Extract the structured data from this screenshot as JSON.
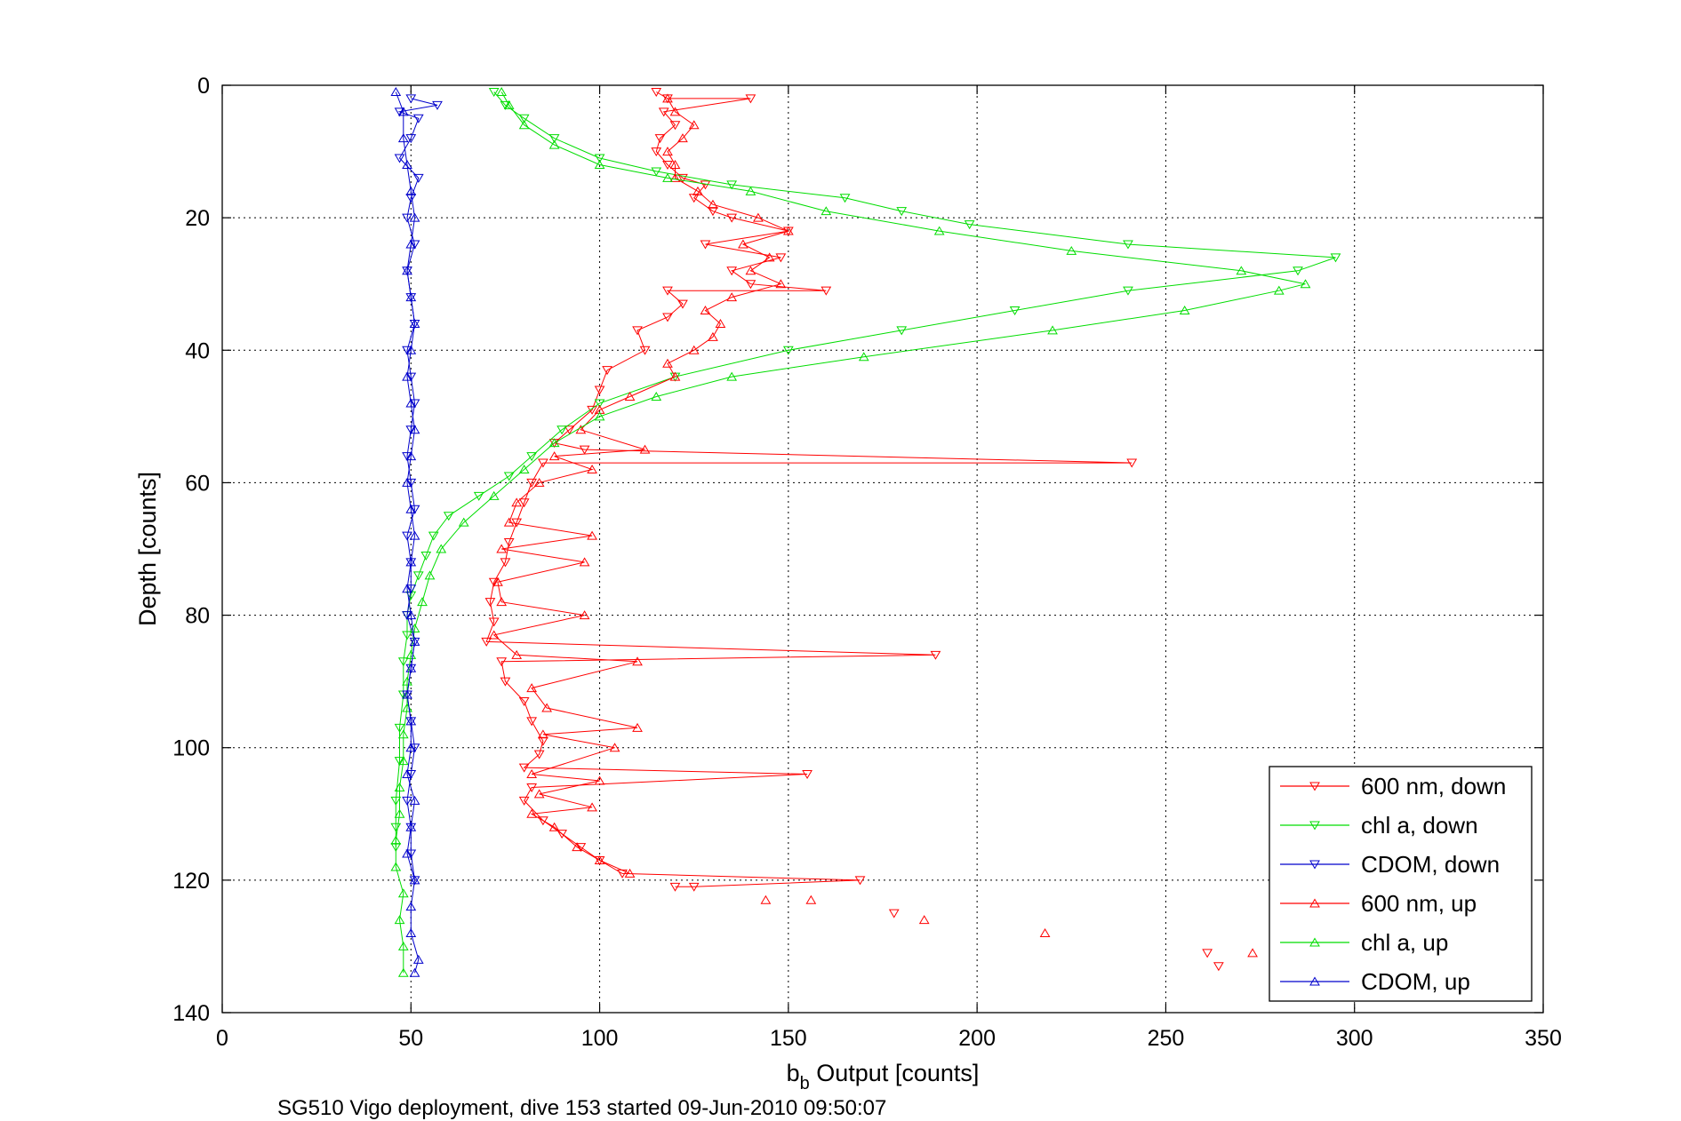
{
  "chart_data": {
    "type": "line",
    "footer": "SG510 Vigo deployment, dive 153 started 09-Jun-2010 09:50:07",
    "xlabel_main": "b",
    "xlabel_sub": "b",
    "xlabel_rest": " Output [counts]",
    "ylabel": "Depth [counts]",
    "xlim": [
      0,
      350
    ],
    "ylim": [
      0,
      140
    ],
    "y_reversed": true,
    "grid": true,
    "legend_position": "bottom-right",
    "xticks": [
      "0",
      "50",
      "100",
      "150",
      "200",
      "250",
      "300",
      "350"
    ],
    "yticks": [
      "0",
      "20",
      "40",
      "60",
      "80",
      "100",
      "120",
      "140"
    ],
    "series": [
      {
        "name": "600 nm, down",
        "color": "#ff0000",
        "marker": "triangle-down",
        "points": [
          [
            115,
            1
          ],
          [
            118,
            2
          ],
          [
            140,
            2
          ],
          [
            117,
            4
          ],
          [
            120,
            6
          ],
          [
            116,
            8
          ],
          [
            115,
            10
          ],
          [
            118,
            12
          ],
          [
            122,
            14
          ],
          [
            128,
            15
          ],
          [
            125,
            17
          ],
          [
            130,
            19
          ],
          [
            135,
            20
          ],
          [
            150,
            22
          ],
          [
            128,
            24
          ],
          [
            148,
            26
          ],
          [
            135,
            28
          ],
          [
            140,
            30
          ],
          [
            160,
            31
          ],
          [
            118,
            31
          ],
          [
            122,
            33
          ],
          [
            118,
            35
          ],
          [
            110,
            37
          ],
          [
            112,
            40
          ],
          [
            102,
            43
          ],
          [
            100,
            46
          ],
          [
            98,
            49
          ],
          [
            92,
            52
          ],
          [
            88,
            54
          ],
          [
            96,
            55
          ],
          [
            241,
            57
          ],
          [
            85,
            57
          ],
          [
            82,
            60
          ],
          [
            80,
            63
          ],
          [
            78,
            66
          ],
          [
            76,
            69
          ],
          [
            75,
            72
          ],
          [
            72,
            75
          ],
          [
            71,
            78
          ],
          [
            72,
            81
          ],
          [
            70,
            84
          ],
          [
            189,
            86
          ],
          [
            74,
            87
          ],
          [
            75,
            90
          ],
          [
            80,
            93
          ],
          [
            82,
            96
          ],
          [
            85,
            99
          ],
          [
            84,
            101
          ],
          [
            80,
            103
          ],
          [
            155,
            104
          ],
          [
            82,
            106
          ],
          [
            80,
            108
          ],
          [
            85,
            111
          ],
          [
            90,
            113
          ],
          [
            95,
            115
          ],
          [
            100,
            117
          ],
          [
            106,
            119
          ],
          [
            169,
            120
          ],
          [
            125,
            121
          ],
          [
            120,
            121
          ]
        ]
      },
      {
        "name": "chl a, down",
        "color": "#00dd00",
        "marker": "triangle-down",
        "points": [
          [
            72,
            1
          ],
          [
            75,
            3
          ],
          [
            80,
            5
          ],
          [
            88,
            8
          ],
          [
            100,
            11
          ],
          [
            115,
            13
          ],
          [
            135,
            15
          ],
          [
            165,
            17
          ],
          [
            180,
            19
          ],
          [
            198,
            21
          ],
          [
            240,
            24
          ],
          [
            295,
            26
          ],
          [
            285,
            28
          ],
          [
            240,
            31
          ],
          [
            210,
            34
          ],
          [
            180,
            37
          ],
          [
            150,
            40
          ],
          [
            120,
            44
          ],
          [
            100,
            48
          ],
          [
            90,
            52
          ],
          [
            82,
            56
          ],
          [
            76,
            59
          ],
          [
            68,
            62
          ],
          [
            60,
            65
          ],
          [
            56,
            68
          ],
          [
            54,
            71
          ],
          [
            52,
            74
          ],
          [
            50,
            77
          ],
          [
            49,
            80
          ],
          [
            49,
            83
          ],
          [
            48,
            87
          ],
          [
            48,
            92
          ],
          [
            47,
            97
          ],
          [
            47,
            102
          ],
          [
            46,
            108
          ],
          [
            46,
            112
          ],
          [
            46,
            115
          ]
        ]
      },
      {
        "name": "CDOM, down",
        "color": "#0000cc",
        "marker": "triangle-down",
        "points": [
          [
            50,
            2
          ],
          [
            57,
            3
          ],
          [
            47,
            4
          ],
          [
            52,
            5
          ],
          [
            50,
            8
          ],
          [
            47,
            11
          ],
          [
            52,
            14
          ],
          [
            50,
            17
          ],
          [
            49,
            20
          ],
          [
            51,
            24
          ],
          [
            49,
            28
          ],
          [
            50,
            32
          ],
          [
            51,
            36
          ],
          [
            49,
            40
          ],
          [
            50,
            44
          ],
          [
            51,
            48
          ],
          [
            50,
            52
          ],
          [
            49,
            56
          ],
          [
            50,
            60
          ],
          [
            51,
            64
          ],
          [
            49,
            68
          ],
          [
            50,
            72
          ],
          [
            50,
            76
          ],
          [
            49,
            80
          ],
          [
            51,
            84
          ],
          [
            50,
            88
          ],
          [
            49,
            92
          ],
          [
            50,
            96
          ],
          [
            51,
            100
          ],
          [
            50,
            104
          ],
          [
            49,
            108
          ],
          [
            50,
            112
          ],
          [
            50,
            116
          ],
          [
            51,
            120
          ]
        ]
      },
      {
        "name": "600 nm, up",
        "color": "#ff0000",
        "marker": "triangle-up",
        "points": [
          [
            108,
            119
          ],
          [
            100,
            117
          ],
          [
            94,
            115
          ],
          [
            88,
            112
          ],
          [
            82,
            110
          ],
          [
            98,
            109
          ],
          [
            84,
            107
          ],
          [
            100,
            105
          ],
          [
            82,
            104
          ],
          [
            104,
            100
          ],
          [
            85,
            98
          ],
          [
            110,
            97
          ],
          [
            86,
            94
          ],
          [
            82,
            91
          ],
          [
            110,
            87
          ],
          [
            78,
            86
          ],
          [
            72,
            83
          ],
          [
            96,
            80
          ],
          [
            74,
            78
          ],
          [
            73,
            75
          ],
          [
            96,
            72
          ],
          [
            74,
            70
          ],
          [
            98,
            68
          ],
          [
            76,
            66
          ],
          [
            78,
            63
          ],
          [
            84,
            60
          ],
          [
            98,
            58
          ],
          [
            88,
            56
          ],
          [
            112,
            55
          ],
          [
            95,
            52
          ],
          [
            100,
            49
          ],
          [
            108,
            47
          ],
          [
            120,
            44
          ],
          [
            118,
            42
          ],
          [
            125,
            40
          ],
          [
            130,
            38
          ],
          [
            132,
            36
          ],
          [
            128,
            34
          ],
          [
            135,
            32
          ],
          [
            148,
            30
          ],
          [
            140,
            28
          ],
          [
            145,
            26
          ],
          [
            138,
            24
          ],
          [
            150,
            22
          ],
          [
            142,
            20
          ],
          [
            130,
            18
          ],
          [
            126,
            16
          ],
          [
            120,
            14
          ],
          [
            120,
            12
          ],
          [
            118,
            10
          ],
          [
            122,
            8
          ],
          [
            125,
            6
          ],
          [
            120,
            4
          ],
          [
            118,
            2
          ]
        ]
      },
      {
        "name": "chl a, up",
        "color": "#00dd00",
        "marker": "triangle-up",
        "points": [
          [
            48,
            134
          ],
          [
            48,
            130
          ],
          [
            47,
            126
          ],
          [
            48,
            122
          ],
          [
            46,
            118
          ],
          [
            46,
            114
          ],
          [
            47,
            110
          ],
          [
            47,
            106
          ],
          [
            48,
            102
          ],
          [
            48,
            98
          ],
          [
            49,
            94
          ],
          [
            49,
            90
          ],
          [
            50,
            86
          ],
          [
            51,
            82
          ],
          [
            53,
            78
          ],
          [
            55,
            74
          ],
          [
            58,
            70
          ],
          [
            64,
            66
          ],
          [
            72,
            62
          ],
          [
            80,
            58
          ],
          [
            88,
            54
          ],
          [
            100,
            50
          ],
          [
            115,
            47
          ],
          [
            135,
            44
          ],
          [
            170,
            41
          ],
          [
            220,
            37
          ],
          [
            255,
            34
          ],
          [
            280,
            31
          ],
          [
            287,
            30
          ],
          [
            270,
            28
          ],
          [
            225,
            25
          ],
          [
            190,
            22
          ],
          [
            160,
            19
          ],
          [
            140,
            16
          ],
          [
            118,
            14
          ],
          [
            100,
            12
          ],
          [
            88,
            9
          ],
          [
            80,
            6
          ],
          [
            76,
            3
          ],
          [
            74,
            1
          ]
        ]
      },
      {
        "name": "CDOM, up",
        "color": "#0000cc",
        "marker": "triangle-up",
        "points": [
          [
            51,
            134
          ],
          [
            52,
            132
          ],
          [
            50,
            128
          ],
          [
            50,
            124
          ],
          [
            51,
            120
          ],
          [
            49,
            116
          ],
          [
            50,
            112
          ],
          [
            51,
            108
          ],
          [
            49,
            104
          ],
          [
            50,
            100
          ],
          [
            50,
            96
          ],
          [
            49,
            92
          ],
          [
            50,
            88
          ],
          [
            51,
            84
          ],
          [
            50,
            80
          ],
          [
            49,
            76
          ],
          [
            50,
            72
          ],
          [
            51,
            68
          ],
          [
            50,
            64
          ],
          [
            49,
            60
          ],
          [
            50,
            56
          ],
          [
            51,
            52
          ],
          [
            50,
            48
          ],
          [
            49,
            44
          ],
          [
            50,
            40
          ],
          [
            51,
            36
          ],
          [
            50,
            32
          ],
          [
            49,
            28
          ],
          [
            50,
            24
          ],
          [
            51,
            20
          ],
          [
            50,
            16
          ],
          [
            49,
            12
          ],
          [
            48,
            8
          ],
          [
            48,
            4
          ],
          [
            46,
            1
          ]
        ]
      }
    ],
    "scatter_points": [
      {
        "name": "600 nm, up",
        "color": "#ff0000",
        "marker": "triangle-up",
        "points": [
          [
            144,
            123
          ],
          [
            156,
            123
          ],
          [
            186,
            126
          ],
          [
            218,
            128
          ],
          [
            273,
            131
          ]
        ]
      },
      {
        "name": "600 nm, down",
        "color": "#ff0000",
        "marker": "triangle-down",
        "points": [
          [
            178,
            125
          ],
          [
            261,
            131
          ],
          [
            264,
            133
          ]
        ]
      }
    ]
  }
}
